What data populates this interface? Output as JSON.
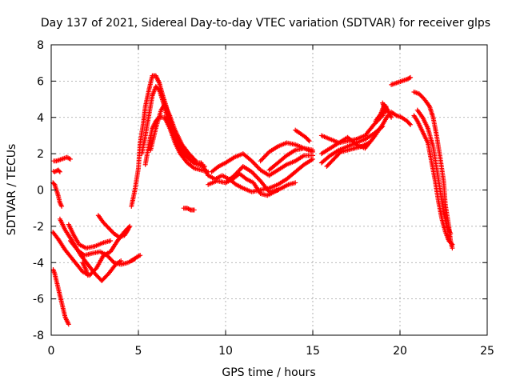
{
  "chart_data": {
    "type": "scatter",
    "title": "Day 137 of 2021, Sidereal Day-to-day VTEC variation (SDTVAR) for receiver glps",
    "xlabel": "GPS time / hours",
    "ylabel": "SDTVAR / TECUs",
    "xlim": [
      0,
      25
    ],
    "ylim": [
      -8,
      8
    ],
    "xticks": [
      0,
      5,
      10,
      15,
      20,
      25
    ],
    "yticks": [
      -8,
      -6,
      -4,
      -2,
      0,
      2,
      4,
      6,
      8
    ],
    "xtick_labels": [
      "0",
      "5",
      "10",
      "15",
      "20",
      "25"
    ],
    "ytick_labels": [
      "-8",
      "-6",
      "-4",
      "-2",
      "0",
      "2",
      "4",
      "6",
      "8"
    ],
    "grid": true,
    "legend": "none",
    "marker": "+",
    "color": "#ff0000",
    "series": [
      {
        "name": "s1",
        "points": [
          [
            0.0,
            1.6
          ],
          [
            0.3,
            1.6
          ],
          [
            0.6,
            1.7
          ],
          [
            0.9,
            1.8
          ],
          [
            1.1,
            1.7
          ]
        ]
      },
      {
        "name": "s2",
        "points": [
          [
            0.0,
            1.1
          ],
          [
            0.2,
            1.0
          ],
          [
            0.4,
            1.1
          ],
          [
            0.5,
            1.0
          ]
        ]
      },
      {
        "name": "s3",
        "points": [
          [
            0.0,
            0.5
          ],
          [
            0.2,
            0.3
          ],
          [
            0.4,
            -0.3
          ],
          [
            0.5,
            -0.7
          ],
          [
            0.6,
            -0.9
          ]
        ]
      },
      {
        "name": "s4",
        "points": [
          [
            0.0,
            -4.1
          ],
          [
            0.2,
            -4.6
          ],
          [
            0.4,
            -5.4
          ],
          [
            0.6,
            -6.2
          ],
          [
            0.8,
            -7.0
          ],
          [
            1.0,
            -7.4
          ]
        ]
      },
      {
        "name": "s5",
        "points": [
          [
            0.0,
            -2.2
          ],
          [
            0.4,
            -2.7
          ],
          [
            0.8,
            -3.3
          ],
          [
            1.3,
            -3.9
          ],
          [
            1.8,
            -4.5
          ],
          [
            2.2,
            -4.7
          ],
          [
            2.6,
            -4.3
          ],
          [
            3.0,
            -3.6
          ],
          [
            3.4,
            -3.4
          ],
          [
            3.8,
            -2.8
          ],
          [
            4.2,
            -2.3
          ],
          [
            4.5,
            -2.0
          ]
        ]
      },
      {
        "name": "s6",
        "points": [
          [
            0.5,
            -1.6
          ],
          [
            0.8,
            -2.2
          ],
          [
            1.2,
            -2.8
          ],
          [
            1.7,
            -3.6
          ],
          [
            2.1,
            -4.1
          ],
          [
            2.5,
            -4.6
          ],
          [
            2.9,
            -5.0
          ],
          [
            3.3,
            -4.6
          ],
          [
            3.7,
            -4.1
          ],
          [
            4.0,
            -3.9
          ]
        ]
      },
      {
        "name": "s7",
        "points": [
          [
            1.0,
            -1.9
          ],
          [
            1.3,
            -2.5
          ],
          [
            1.6,
            -3.0
          ],
          [
            2.0,
            -3.2
          ],
          [
            2.5,
            -3.1
          ],
          [
            3.0,
            -2.9
          ],
          [
            3.4,
            -2.8
          ]
        ]
      },
      {
        "name": "s8",
        "points": [
          [
            1.1,
            -2.8
          ],
          [
            1.5,
            -3.3
          ],
          [
            1.9,
            -3.6
          ],
          [
            2.3,
            -3.5
          ],
          [
            2.8,
            -3.4
          ],
          [
            3.2,
            -3.6
          ],
          [
            3.6,
            -4.0
          ],
          [
            4.0,
            -4.1
          ],
          [
            4.4,
            -4.0
          ],
          [
            4.8,
            -3.8
          ]
        ]
      },
      {
        "name": "s9",
        "points": [
          [
            2.7,
            -1.4
          ],
          [
            3.0,
            -1.8
          ],
          [
            3.3,
            -2.1
          ],
          [
            3.6,
            -2.4
          ],
          [
            3.9,
            -2.6
          ],
          [
            4.2,
            -2.5
          ],
          [
            4.4,
            -2.2
          ],
          [
            4.5,
            -2.0
          ]
        ]
      },
      {
        "name": "s10",
        "points": [
          [
            1.8,
            -4.0
          ],
          [
            2.0,
            -4.4
          ],
          [
            2.1,
            -4.7
          ]
        ]
      },
      {
        "name": "s11",
        "points": [
          [
            4.6,
            -3.9
          ],
          [
            4.9,
            -3.7
          ],
          [
            5.1,
            -3.6
          ]
        ]
      },
      {
        "name": "s12",
        "points": [
          [
            4.6,
            -0.9
          ],
          [
            4.8,
            0.0
          ],
          [
            5.0,
            1.2
          ],
          [
            5.1,
            2.6
          ],
          [
            5.3,
            3.8
          ],
          [
            5.4,
            4.6
          ],
          [
            5.6,
            5.5
          ],
          [
            5.8,
            6.3
          ],
          [
            6.0,
            6.3
          ],
          [
            6.2,
            5.9
          ],
          [
            6.4,
            5.2
          ],
          [
            6.6,
            4.6
          ],
          [
            6.8,
            3.9
          ],
          [
            7.0,
            3.3
          ],
          [
            7.3,
            2.6
          ],
          [
            7.6,
            2.1
          ],
          [
            8.0,
            1.6
          ],
          [
            8.4,
            1.4
          ],
          [
            8.8,
            1.3
          ]
        ]
      },
      {
        "name": "s13",
        "points": [
          [
            5.2,
            2.0
          ],
          [
            5.4,
            3.0
          ],
          [
            5.6,
            4.1
          ],
          [
            5.8,
            5.2
          ],
          [
            6.0,
            5.7
          ],
          [
            6.2,
            5.5
          ],
          [
            6.4,
            4.9
          ],
          [
            6.6,
            4.2
          ],
          [
            6.8,
            3.5
          ],
          [
            7.1,
            2.8
          ],
          [
            7.4,
            2.2
          ],
          [
            7.8,
            1.8
          ],
          [
            8.2,
            1.5
          ],
          [
            8.6,
            1.5
          ]
        ]
      },
      {
        "name": "s14",
        "points": [
          [
            5.4,
            1.4
          ],
          [
            5.6,
            2.5
          ],
          [
            5.8,
            3.4
          ],
          [
            6.0,
            3.8
          ],
          [
            6.2,
            4.0
          ],
          [
            6.5,
            4.0
          ],
          [
            6.8,
            3.4
          ],
          [
            7.1,
            2.6
          ],
          [
            7.4,
            2.0
          ],
          [
            7.8,
            1.5
          ],
          [
            8.2,
            1.2
          ],
          [
            8.6,
            1.1
          ],
          [
            9.0,
            1.0
          ]
        ]
      },
      {
        "name": "s15",
        "points": [
          [
            5.7,
            2.2
          ],
          [
            6.0,
            3.4
          ],
          [
            6.3,
            4.4
          ],
          [
            6.5,
            4.7
          ],
          [
            6.8,
            4.1
          ],
          [
            7.1,
            3.3
          ],
          [
            7.5,
            2.5
          ],
          [
            7.9,
            2.0
          ],
          [
            8.3,
            1.6
          ]
        ]
      },
      {
        "name": "s16",
        "points": [
          [
            7.6,
            -1.0
          ],
          [
            7.8,
            -1.0
          ],
          [
            8.0,
            -1.1
          ],
          [
            8.2,
            -1.1
          ]
        ]
      },
      {
        "name": "s17",
        "points": [
          [
            8.6,
            1.5
          ],
          [
            9.0,
            0.8
          ],
          [
            9.4,
            0.6
          ],
          [
            9.8,
            0.8
          ],
          [
            10.2,
            0.6
          ],
          [
            10.6,
            0.3
          ],
          [
            11.0,
            0.1
          ],
          [
            11.5,
            -0.1
          ],
          [
            12.0,
            0.0
          ],
          [
            12.5,
            0.1
          ],
          [
            13.0,
            0.3
          ],
          [
            13.5,
            0.6
          ],
          [
            14.0,
            1.0
          ],
          [
            14.5,
            1.4
          ],
          [
            15.0,
            1.7
          ]
        ]
      },
      {
        "name": "s18",
        "points": [
          [
            9.0,
            0.3
          ],
          [
            9.5,
            0.5
          ],
          [
            10.0,
            0.4
          ],
          [
            10.5,
            0.8
          ],
          [
            11.0,
            1.3
          ],
          [
            11.5,
            1.0
          ],
          [
            12.0,
            0.5
          ],
          [
            12.5,
            -0.1
          ],
          [
            13.0,
            0.0
          ]
        ]
      },
      {
        "name": "s19",
        "points": [
          [
            9.2,
            1.0
          ],
          [
            9.6,
            1.3
          ],
          [
            10.0,
            1.5
          ],
          [
            10.5,
            1.8
          ],
          [
            11.0,
            2.0
          ],
          [
            11.5,
            1.6
          ],
          [
            12.0,
            1.1
          ],
          [
            12.5,
            0.8
          ],
          [
            13.0,
            1.1
          ],
          [
            13.5,
            1.4
          ],
          [
            14.0,
            1.6
          ],
          [
            14.5,
            1.9
          ],
          [
            15.0,
            1.9
          ]
        ]
      },
      {
        "name": "s20",
        "points": [
          [
            10.0,
            0.4
          ],
          [
            10.4,
            0.6
          ],
          [
            10.8,
            0.9
          ],
          [
            11.2,
            0.6
          ],
          [
            11.6,
            0.4
          ],
          [
            12.0,
            -0.2
          ],
          [
            12.4,
            -0.3
          ],
          [
            12.8,
            -0.1
          ],
          [
            13.2,
            0.1
          ],
          [
            13.6,
            0.3
          ],
          [
            14.0,
            0.4
          ]
        ]
      },
      {
        "name": "s21",
        "points": [
          [
            12.0,
            1.6
          ],
          [
            12.5,
            2.1
          ],
          [
            13.0,
            2.4
          ],
          [
            13.5,
            2.6
          ],
          [
            14.0,
            2.5
          ],
          [
            14.5,
            2.3
          ],
          [
            15.0,
            2.1
          ]
        ]
      },
      {
        "name": "s22",
        "points": [
          [
            12.5,
            1.1
          ],
          [
            13.0,
            1.5
          ],
          [
            13.5,
            1.9
          ],
          [
            14.0,
            2.2
          ],
          [
            14.5,
            2.3
          ],
          [
            15.0,
            2.2
          ]
        ]
      },
      {
        "name": "s23",
        "points": [
          [
            14.0,
            3.3
          ],
          [
            14.3,
            3.1
          ],
          [
            14.6,
            2.9
          ],
          [
            14.8,
            2.7
          ]
        ]
      },
      {
        "name": "s24",
        "points": [
          [
            15.5,
            3.0
          ],
          [
            16.0,
            2.8
          ],
          [
            16.5,
            2.6
          ],
          [
            17.0,
            2.7
          ],
          [
            17.5,
            2.8
          ],
          [
            18.0,
            3.0
          ],
          [
            18.5,
            3.6
          ],
          [
            19.0,
            4.1
          ],
          [
            19.2,
            4.6
          ]
        ]
      },
      {
        "name": "s25",
        "points": [
          [
            15.5,
            2.0
          ],
          [
            16.0,
            2.3
          ],
          [
            16.5,
            2.6
          ],
          [
            17.0,
            2.9
          ],
          [
            17.5,
            2.5
          ],
          [
            18.0,
            2.3
          ],
          [
            18.5,
            2.9
          ],
          [
            19.0,
            3.6
          ],
          [
            19.3,
            4.1
          ]
        ]
      },
      {
        "name": "s26",
        "points": [
          [
            15.5,
            1.5
          ],
          [
            16.0,
            1.9
          ],
          [
            16.5,
            2.2
          ],
          [
            17.0,
            2.4
          ],
          [
            17.5,
            2.6
          ],
          [
            18.0,
            2.8
          ],
          [
            18.5,
            3.1
          ],
          [
            19.0,
            3.5
          ]
        ]
      },
      {
        "name": "s27",
        "points": [
          [
            15.8,
            1.3
          ],
          [
            16.2,
            1.7
          ],
          [
            16.6,
            2.1
          ],
          [
            17.0,
            2.2
          ],
          [
            17.4,
            2.3
          ],
          [
            17.8,
            2.4
          ],
          [
            18.2,
            2.6
          ]
        ]
      },
      {
        "name": "s28",
        "points": [
          [
            18.6,
            3.8
          ],
          [
            18.9,
            4.2
          ],
          [
            19.1,
            4.7
          ],
          [
            19.3,
            4.4
          ],
          [
            19.5,
            4.0
          ]
        ]
      },
      {
        "name": "s29",
        "points": [
          [
            19.0,
            4.8
          ],
          [
            19.2,
            4.3
          ]
        ]
      },
      {
        "name": "s30",
        "points": [
          [
            19.5,
            5.8
          ],
          [
            19.8,
            5.9
          ],
          [
            20.1,
            6.0
          ],
          [
            20.4,
            6.1
          ],
          [
            20.6,
            6.2
          ]
        ]
      },
      {
        "name": "s31",
        "points": [
          [
            19.5,
            4.3
          ],
          [
            19.8,
            4.1
          ],
          [
            20.1,
            4.0
          ],
          [
            20.4,
            3.8
          ],
          [
            20.6,
            3.6
          ]
        ]
      },
      {
        "name": "s32",
        "points": [
          [
            20.8,
            5.4
          ],
          [
            21.1,
            5.3
          ],
          [
            21.4,
            5.0
          ],
          [
            21.7,
            4.6
          ],
          [
            21.9,
            4.0
          ],
          [
            22.1,
            3.0
          ],
          [
            22.3,
            1.8
          ],
          [
            22.5,
            0.5
          ],
          [
            22.6,
            -0.8
          ],
          [
            22.8,
            -2.0
          ],
          [
            22.9,
            -2.8
          ],
          [
            23.0,
            -3.2
          ]
        ]
      },
      {
        "name": "s33",
        "points": [
          [
            20.8,
            4.1
          ],
          [
            21.0,
            3.8
          ],
          [
            21.3,
            3.2
          ],
          [
            21.6,
            2.6
          ],
          [
            21.8,
            1.6
          ],
          [
            22.0,
            0.6
          ],
          [
            22.2,
            -0.6
          ],
          [
            22.4,
            -1.6
          ],
          [
            22.6,
            -2.3
          ],
          [
            22.8,
            -2.8
          ],
          [
            23.0,
            -3.0
          ]
        ]
      },
      {
        "name": "s34",
        "points": [
          [
            21.0,
            4.4
          ],
          [
            21.3,
            4.0
          ],
          [
            21.6,
            3.4
          ],
          [
            21.9,
            2.4
          ],
          [
            22.1,
            1.2
          ],
          [
            22.3,
            0.0
          ],
          [
            22.5,
            -1.2
          ],
          [
            22.7,
            -2.0
          ],
          [
            22.9,
            -2.4
          ]
        ]
      }
    ]
  }
}
